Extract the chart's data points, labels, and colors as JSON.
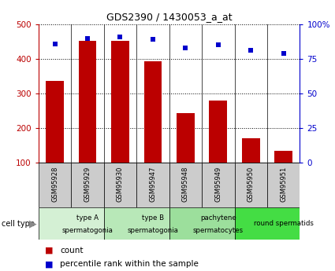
{
  "title": "GDS2390 / 1430053_a_at",
  "samples": [
    "GSM95928",
    "GSM95929",
    "GSM95930",
    "GSM95947",
    "GSM95948",
    "GSM95949",
    "GSM95950",
    "GSM95951"
  ],
  "counts": [
    337,
    453,
    452,
    393,
    243,
    279,
    170,
    133
  ],
  "percentile_ranks": [
    86,
    90,
    91,
    89,
    83,
    85,
    81,
    79
  ],
  "ylim_left": [
    100,
    500
  ],
  "ylim_right": [
    0,
    100
  ],
  "yticks_left": [
    100,
    200,
    300,
    400,
    500
  ],
  "yticks_right": [
    0,
    25,
    50,
    75,
    100
  ],
  "yticklabels_right": [
    "0",
    "25",
    "50",
    "75",
    "100%"
  ],
  "bar_color": "#bb0000",
  "marker_color": "#0000cc",
  "cell_types": [
    {
      "label": "type A\nspermatogonia",
      "color": "#d4f0d4",
      "start": 0,
      "end": 2
    },
    {
      "label": "type B\nspermatogonia",
      "color": "#b8e8b8",
      "start": 2,
      "end": 4
    },
    {
      "label": "pachytene\nspermatocytes",
      "color": "#9cdf9c",
      "start": 4,
      "end": 6
    },
    {
      "label": "round spermatids",
      "color": "#44dd44",
      "start": 6,
      "end": 8
    }
  ],
  "sample_bg_color": "#cccccc",
  "legend_count_color": "#bb0000",
  "legend_pct_color": "#0000cc",
  "fig_bg": "#ffffff"
}
